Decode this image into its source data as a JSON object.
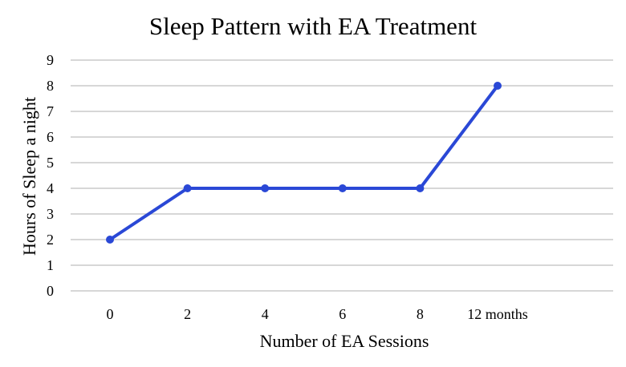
{
  "chart_data": {
    "type": "line",
    "title": "Sleep Pattern with EA Treatment",
    "xlabel": "Number of EA Sessions",
    "ylabel": "Hours of Sleep a night",
    "categories": [
      "0",
      "2",
      "4",
      "6",
      "8",
      "12 months"
    ],
    "series": [
      {
        "values": [
          2,
          4,
          4,
          4,
          4,
          8
        ],
        "color": "#2a48d6"
      }
    ],
    "ylim": [
      0,
      9
    ],
    "yticks": [
      "0",
      "1",
      "2",
      "3",
      "4",
      "5",
      "6",
      "7",
      "8",
      "9"
    ],
    "grid": true,
    "legend": "none",
    "gridColor": "#bfbfbf"
  }
}
